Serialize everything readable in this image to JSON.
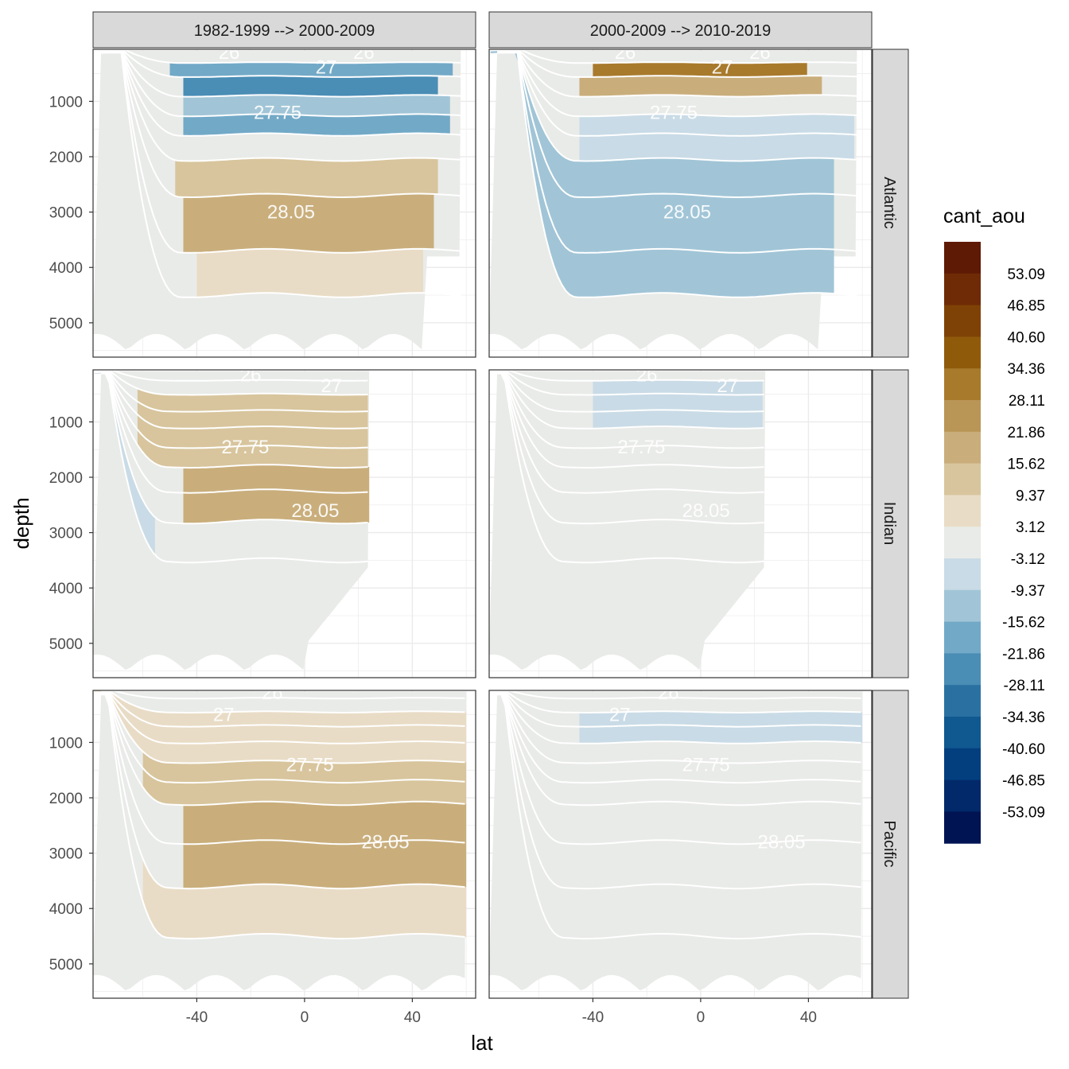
{
  "chart_data": {
    "type": "contour",
    "xlabel": "lat",
    "ylabel": "depth",
    "x_ticks": [
      -40,
      0,
      40
    ],
    "y_ticks": [
      1000,
      2000,
      3000,
      4000,
      5000
    ],
    "y_reversed": true,
    "columns": [
      "1982-1999 --> 2000-2009",
      "2000-2009 --> 2010-2019"
    ],
    "rows": [
      "Atlantic",
      "Indian",
      "Pacific"
    ],
    "legend": {
      "title": "cant_aou",
      "placement": "right",
      "labels": [
        "53.09",
        "46.85",
        "40.60",
        "34.36",
        "28.11",
        "21.86",
        "15.62",
        "9.37",
        "3.12",
        "-3.12",
        "-9.37",
        "-15.62",
        "-21.86",
        "-28.11",
        "-34.36",
        "-40.60",
        "-46.85",
        "-53.09"
      ],
      "colors": [
        "#5e1a05",
        "#6f2b05",
        "#7f4206",
        "#8f5b0b",
        "#a87a2c",
        "#b99556",
        "#c9ae7c",
        "#d8c59d",
        "#e9dcc6",
        "#e9ebe8",
        "#c9dbe6",
        "#a1c5d7",
        "#72a9c7",
        "#4a8db5",
        "#2a71a1",
        "#105890",
        "#033f7f",
        "#02296a",
        "#001454"
      ]
    },
    "isopycnal_labels": [
      "26",
      "27",
      "27.75",
      "28.05"
    ],
    "panels": [
      {
        "row": "Atlantic",
        "col": 0,
        "labels": [
          {
            "text": "26",
            "lat": -28,
            "depth": 120
          },
          {
            "text": "26",
            "lat": 22,
            "depth": 120
          },
          {
            "text": "27",
            "lat": 8,
            "depth": 380
          },
          {
            "text": "27.75",
            "lat": -10,
            "depth": 1200
          },
          {
            "text": "28.05",
            "lat": -5,
            "depth": 3000
          }
        ]
      },
      {
        "row": "Atlantic",
        "col": 1,
        "labels": [
          {
            "text": "26",
            "lat": -28,
            "depth": 120
          },
          {
            "text": "26",
            "lat": 22,
            "depth": 120
          },
          {
            "text": "27",
            "lat": 8,
            "depth": 380
          },
          {
            "text": "27.75",
            "lat": -10,
            "depth": 1200
          },
          {
            "text": "28.05",
            "lat": -5,
            "depth": 3000
          }
        ]
      },
      {
        "row": "Indian",
        "col": 0,
        "labels": [
          {
            "text": "26",
            "lat": -20,
            "depth": 150
          },
          {
            "text": "27",
            "lat": 10,
            "depth": 350
          },
          {
            "text": "27.75",
            "lat": -22,
            "depth": 1450
          },
          {
            "text": "28.05",
            "lat": 4,
            "depth": 2600
          }
        ]
      },
      {
        "row": "Indian",
        "col": 1,
        "labels": [
          {
            "text": "26",
            "lat": -20,
            "depth": 150
          },
          {
            "text": "27",
            "lat": 10,
            "depth": 350
          },
          {
            "text": "27.75",
            "lat": -22,
            "depth": 1450
          },
          {
            "text": "28.05",
            "lat": 2,
            "depth": 2600
          }
        ]
      },
      {
        "row": "Pacific",
        "col": 0,
        "labels": [
          {
            "text": "26",
            "lat": -12,
            "depth": 100
          },
          {
            "text": "27",
            "lat": -30,
            "depth": 500
          },
          {
            "text": "27.75",
            "lat": 2,
            "depth": 1400
          },
          {
            "text": "28.05",
            "lat": 30,
            "depth": 2800
          }
        ]
      },
      {
        "row": "Pacific",
        "col": 1,
        "labels": [
          {
            "text": "26",
            "lat": -12,
            "depth": 100
          },
          {
            "text": "27",
            "lat": -30,
            "depth": 500
          },
          {
            "text": "27.75",
            "lat": 2,
            "depth": 1400
          },
          {
            "text": "28.05",
            "lat": 30,
            "depth": 2800
          }
        ]
      }
    ]
  }
}
